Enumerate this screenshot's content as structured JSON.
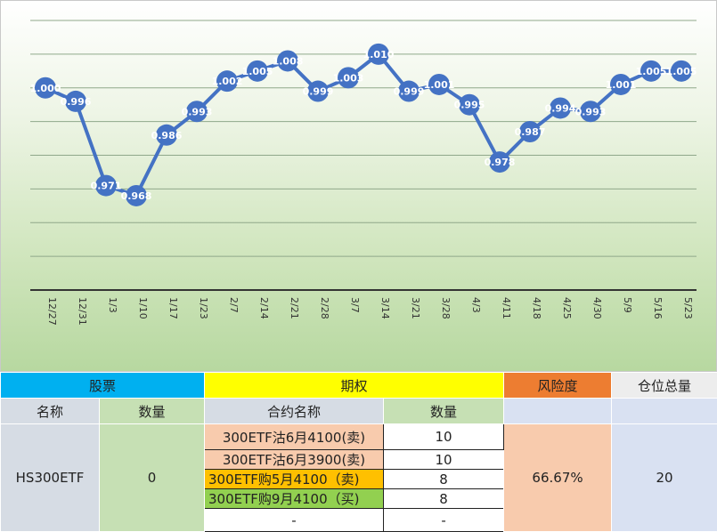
{
  "chart_data": {
    "type": "line",
    "categories": [
      "12/27",
      "12/31",
      "1/3",
      "1/10",
      "1/17",
      "1/23",
      "2/7",
      "2/14",
      "2/21",
      "2/28",
      "3/7",
      "3/14",
      "3/21",
      "3/28",
      "4/3",
      "4/11",
      "4/18",
      "4/25",
      "4/30",
      "5/9",
      "5/16",
      "5/23"
    ],
    "values": [
      1.0,
      0.996,
      0.971,
      0.968,
      0.986,
      0.993,
      1.002,
      1.005,
      1.008,
      0.999,
      1.003,
      1.01,
      0.999,
      1.001,
      0.995,
      0.978,
      0.987,
      0.994,
      0.993,
      1.001,
      1.005,
      1.005
    ],
    "labels": [
      "1.000",
      "0.996",
      "0.971",
      "0.968",
      "0.986",
      "0.993",
      "1.002",
      "1.005",
      "1.008",
      "0.999",
      "1.003",
      "1.010",
      "0.999",
      "1.001",
      "0.995",
      "0.978",
      "0.987",
      "0.994",
      "0.993",
      "1.001",
      "1.005",
      "1.005"
    ],
    "ylim": [
      0.94,
      1.02
    ],
    "grid": true,
    "title": "",
    "xlabel": "",
    "ylabel": "",
    "colors": {
      "line": "#4472c4",
      "grid": "#8fa88a"
    }
  },
  "table": {
    "headers": {
      "stock": "股票",
      "options": "期权",
      "risk": "风险度",
      "position": "仓位总量"
    },
    "subheaders": {
      "stock_name": "名称",
      "stock_qty": "数量",
      "contract_name": "合约名称",
      "contract_qty": "数量"
    },
    "stock": {
      "name": "HS300ETF",
      "qty": "0"
    },
    "options": [
      {
        "name": "300ETF沽6月4100(卖)",
        "qty": "10",
        "color": "#f8cbad"
      },
      {
        "name": "300ETF沽6月3900(卖)",
        "qty": "10",
        "color": "#f8cbad"
      },
      {
        "name": "300ETF购5月4100（卖)",
        "qty": "8",
        "color": "#ffc000"
      },
      {
        "name": "300ETF购9月4100（买)",
        "qty": "8",
        "color": "#92d050"
      },
      {
        "name": "-",
        "qty": "-",
        "color": "#ffffff"
      }
    ],
    "risk": "66.67%",
    "position_total": "20"
  }
}
